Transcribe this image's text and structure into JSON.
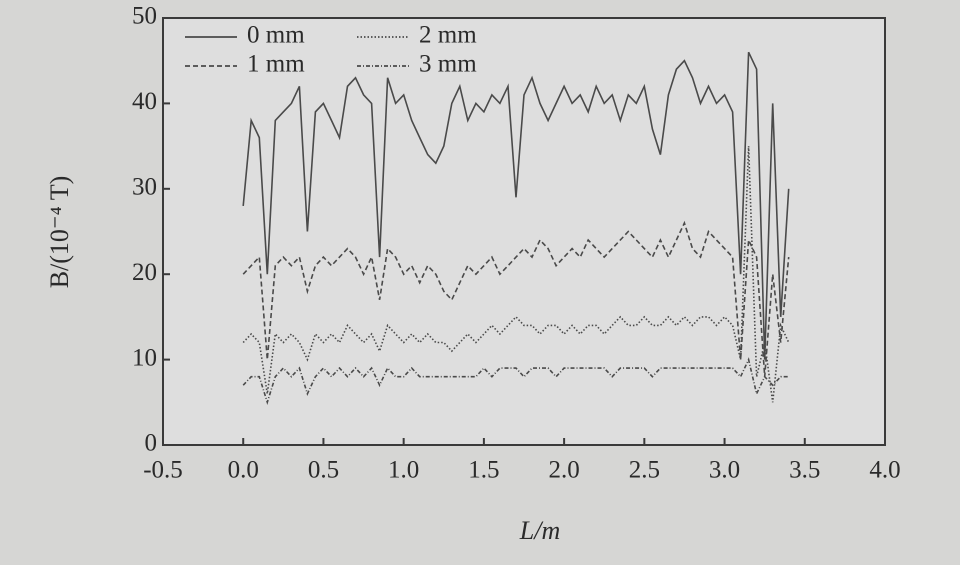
{
  "chart_data": {
    "type": "line",
    "x_label": "L/m",
    "y_label": "B/(10⁻⁴ T)",
    "xlim": [
      -0.5,
      4.0
    ],
    "xticks": [
      -0.5,
      {
        "value": 0,
        "label": "0.0"
      },
      0.5,
      {
        "value": 1,
        "label": "1.0"
      },
      1.5,
      {
        "value": 2,
        "label": "2.0"
      },
      2.5,
      {
        "value": 3,
        "label": "3.0"
      },
      3.5,
      {
        "value": 4,
        "label": "4.0"
      }
    ],
    "ylim": [
      0,
      50
    ],
    "yticks": [
      0,
      10,
      20,
      30,
      40,
      50
    ],
    "grid": false,
    "legend": "upper left",
    "x": [
      0,
      0.05,
      0.1,
      0.15,
      0.2,
      0.25,
      0.3,
      0.35,
      0.4,
      0.45,
      0.5,
      0.55,
      0.6,
      0.65,
      0.7,
      0.75,
      0.8,
      0.85,
      0.9,
      0.95,
      1.0,
      1.05,
      1.1,
      1.15,
      1.2,
      1.25,
      1.3,
      1.35,
      1.4,
      1.45,
      1.5,
      1.55,
      1.6,
      1.65,
      1.7,
      1.75,
      1.8,
      1.85,
      1.9,
      1.95,
      2.0,
      2.05,
      2.1,
      2.15,
      2.2,
      2.25,
      2.3,
      2.35,
      2.4,
      2.45,
      2.5,
      2.55,
      2.6,
      2.65,
      2.7,
      2.75,
      2.8,
      2.85,
      2.9,
      2.95,
      3.0,
      3.05,
      3.1,
      3.15,
      3.2,
      3.25,
      3.3,
      3.35,
      3.4
    ],
    "series": [
      {
        "name": "0 mm",
        "color": "#4a4a4a",
        "line_style": "solid",
        "values": [
          28,
          38,
          36,
          20,
          38,
          39,
          40,
          42,
          25,
          39,
          40,
          38,
          36,
          42,
          43,
          41,
          40,
          22,
          43,
          40,
          41,
          38,
          36,
          34,
          33,
          35,
          40,
          42,
          38,
          40,
          39,
          41,
          40,
          42,
          29,
          41,
          43,
          40,
          38,
          40,
          42,
          40,
          41,
          39,
          42,
          40,
          41,
          38,
          41,
          40,
          42,
          37,
          34,
          41,
          44,
          45,
          43,
          40,
          42,
          40,
          41,
          39,
          20,
          46,
          44,
          10,
          40,
          15,
          30
        ]
      },
      {
        "name": "1 mm",
        "color": "#4a4a4a",
        "line_style": "dashed",
        "values": [
          20,
          21,
          22,
          10,
          21,
          22,
          21,
          22,
          18,
          21,
          22,
          21,
          22,
          23,
          22,
          20,
          22,
          17,
          23,
          22,
          20,
          21,
          19,
          21,
          20,
          18,
          17,
          19,
          21,
          20,
          21,
          22,
          20,
          21,
          22,
          23,
          22,
          24,
          23,
          21,
          22,
          23,
          22,
          24,
          23,
          22,
          23,
          24,
          25,
          24,
          23,
          22,
          24,
          22,
          24,
          26,
          23,
          22,
          25,
          24,
          23,
          22,
          10,
          24,
          22,
          8,
          20,
          12,
          22
        ]
      },
      {
        "name": "2 mm",
        "color": "#4a4a4a",
        "line_style": "dotted",
        "values": [
          12,
          13,
          12,
          6,
          13,
          12,
          13,
          12,
          10,
          13,
          12,
          13,
          12,
          14,
          13,
          12,
          13,
          11,
          14,
          13,
          12,
          13,
          12,
          13,
          12,
          12,
          11,
          12,
          13,
          12,
          13,
          14,
          13,
          14,
          15,
          14,
          14,
          13,
          14,
          14,
          13,
          14,
          13,
          14,
          14,
          13,
          14,
          15,
          14,
          14,
          15,
          14,
          14,
          15,
          14,
          15,
          14,
          15,
          15,
          14,
          15,
          14,
          10,
          35,
          8,
          12,
          5,
          14,
          12
        ]
      },
      {
        "name": "3 mm",
        "color": "#4a4a4a",
        "line_style": "dashdot",
        "values": [
          7,
          8,
          8,
          5,
          8,
          9,
          8,
          9,
          6,
          8,
          9,
          8,
          9,
          8,
          9,
          8,
          9,
          7,
          9,
          8,
          8,
          9,
          8,
          8,
          8,
          8,
          8,
          8,
          8,
          8,
          9,
          8,
          9,
          9,
          9,
          8,
          9,
          9,
          9,
          8,
          9,
          9,
          9,
          9,
          9,
          9,
          8,
          9,
          9,
          9,
          9,
          8,
          9,
          9,
          9,
          9,
          9,
          9,
          9,
          9,
          9,
          9,
          8,
          10,
          6,
          8,
          7,
          8,
          8
        ]
      }
    ]
  }
}
